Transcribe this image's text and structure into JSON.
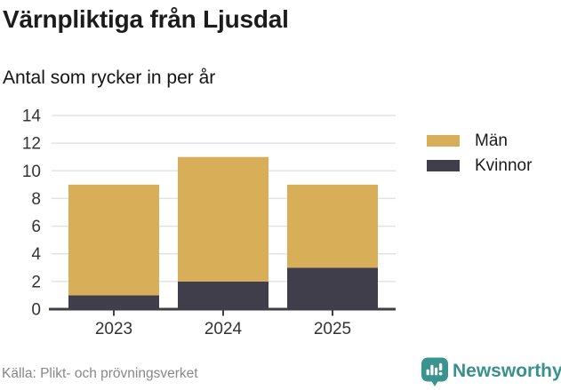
{
  "header": {
    "title": "Värnpliktiga från Ljusdal",
    "subtitle": "Antal som rycker in per år"
  },
  "chart_data": {
    "type": "bar",
    "stacked": true,
    "title": "Värnpliktiga från Ljusdal",
    "subtitle": "Antal som rycker in per år",
    "xlabel": "",
    "ylabel": "",
    "categories": [
      "2023",
      "2024",
      "2025"
    ],
    "series": [
      {
        "name": "Män",
        "color": "#d9ae59",
        "values": [
          8,
          9,
          6
        ]
      },
      {
        "name": "Kvinnor",
        "color": "#3f3e4a",
        "values": [
          1,
          2,
          3
        ]
      }
    ],
    "stack_note": "series listed top-to-bottom of stack; Kvinnor segment sits at bottom of each bar",
    "totals": [
      9,
      11,
      9
    ],
    "ylim": [
      0,
      14
    ],
    "yticks": [
      0,
      2,
      4,
      6,
      8,
      10,
      12,
      14
    ],
    "grid": true,
    "legend_position": "right",
    "axis_color": "#3f3e4a",
    "gridline_color": "#e3e3e3",
    "tick_label_color": "#333333"
  },
  "footer": {
    "source": "Källa: Plikt- och prövningsverket",
    "brand": "Newsworthy",
    "brand_color": "#38918c",
    "brand_icon": "newsworthy-speech-bubble-bar-chart-icon",
    "brand_icon_color": "#3a938e"
  }
}
